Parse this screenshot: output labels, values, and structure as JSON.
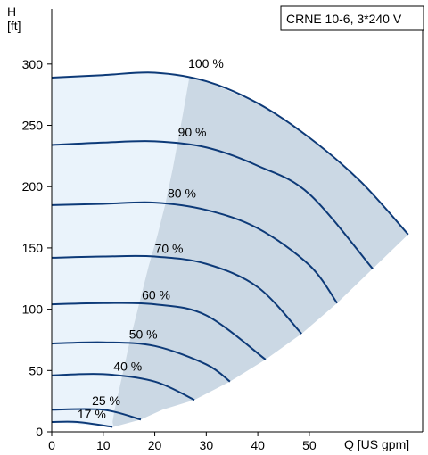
{
  "chart_data": {
    "type": "line",
    "title": "CRNE 10-6, 3*240 V",
    "xlabel": "Q [US gpm]",
    "ylabel": "H",
    "ylabel_unit": "[ft]",
    "xlim": [
      0,
      72
    ],
    "ylim": [
      0,
      345
    ],
    "x_ticks": [
      0,
      10,
      20,
      30,
      40,
      50
    ],
    "x_tick_labels": [
      "0",
      "10",
      "20",
      "30",
      "40",
      "50"
    ],
    "y_ticks": [
      0,
      50,
      100,
      150,
      200,
      250,
      300
    ],
    "y_tick_labels": [
      "0",
      "50",
      "100",
      "150",
      "200",
      "250",
      "300"
    ],
    "grid": false,
    "colors": {
      "curve": "#0d3a78",
      "operating_region": "#cbd8e4",
      "low_flow_region": "#eaf3fb",
      "axis": "#000000"
    },
    "series": [
      {
        "name": "100 %",
        "x": [
          0,
          10,
          20,
          30,
          40,
          50,
          60,
          69.2
        ],
        "y": [
          289,
          291,
          293,
          286,
          268,
          240,
          204,
          161
        ]
      },
      {
        "name": "90 %",
        "x": [
          0,
          10,
          20,
          30,
          40,
          50,
          62.3
        ],
        "y": [
          234,
          236,
          237,
          232,
          217,
          194,
          133
        ]
      },
      {
        "name": "80 %",
        "x": [
          0,
          10,
          20,
          30,
          40,
          50,
          55.4
        ],
        "y": [
          185,
          186,
          187,
          181,
          166,
          136,
          105
        ]
      },
      {
        "name": "70 %",
        "x": [
          0,
          10,
          20,
          30,
          40,
          48.5
        ],
        "y": [
          142,
          143,
          143,
          137,
          118,
          80
        ]
      },
      {
        "name": "60 %",
        "x": [
          0,
          10,
          20,
          30,
          41.5
        ],
        "y": [
          104,
          105,
          104,
          95,
          59
        ]
      },
      {
        "name": "50 %",
        "x": [
          0,
          10,
          20,
          30,
          34.6
        ],
        "y": [
          72,
          73,
          70,
          55,
          41
        ]
      },
      {
        "name": "40 %",
        "x": [
          0,
          10,
          20,
          27.7
        ],
        "y": [
          46,
          47,
          41,
          26
        ]
      },
      {
        "name": "25 %",
        "x": [
          0,
          10,
          17.3
        ],
        "y": [
          18,
          18,
          10
        ]
      },
      {
        "name": "17 %",
        "x": [
          0,
          5,
          11.8
        ],
        "y": [
          8,
          8,
          4
        ]
      }
    ],
    "operating_region_boundary": {
      "x": [
        26.7,
        25.5,
        23.5,
        22.0,
        20.5,
        18.8,
        17.0,
        15.2,
        13.7,
        12.2,
        11.8,
        12.0,
        17.3,
        21.5,
        27.7,
        34.6,
        41.5,
        48.5,
        55.4,
        62.3,
        69.2
      ],
      "y": [
        289,
        260,
        215,
        185,
        160,
        135,
        105,
        75,
        46,
        18,
        8,
        4,
        10,
        18,
        26,
        41,
        59,
        80,
        105,
        133,
        161
      ]
    }
  }
}
